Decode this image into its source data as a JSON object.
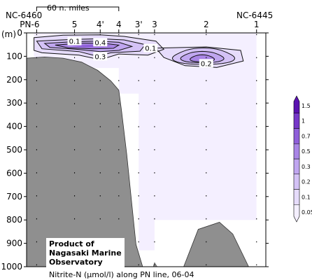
{
  "chart_data": {
    "type": "heatmap",
    "title": "Nitrite-N (μmol/l) along PN line, 06-04",
    "scale_label": "60 n. miles",
    "station_left_id": "NC-6460",
    "station_right_id": "NC-6445",
    "y_unit": "(m)",
    "yticks": [
      0,
      100,
      200,
      300,
      400,
      500,
      600,
      700,
      800,
      900,
      1000
    ],
    "ylim": [
      0,
      1000
    ],
    "stations": [
      {
        "label": "PN-6",
        "x": 0
      },
      {
        "label": "5",
        "x": 1.43
      },
      {
        "label": "4'",
        "x": 2.4
      },
      {
        "label": "4",
        "x": 3.1
      },
      {
        "label": "3'",
        "x": 3.85
      },
      {
        "label": "3",
        "x": 4.45
      },
      {
        "label": "2",
        "x": 6.4
      },
      {
        "label": "1",
        "x": 8.3
      }
    ],
    "xlim": [
      -0.38,
      8.65
    ],
    "levels": [
      0.05,
      0.1,
      0.2,
      0.3,
      0.5,
      0.7,
      1,
      1.5
    ],
    "level_labels": [
      "0.05",
      "0.1",
      "0.2",
      "0.3",
      "0.5",
      "0.7",
      "1",
      "1.5"
    ],
    "level_colors": [
      "#f4efff",
      "#e6dcfb",
      "#d4c2f6",
      "#c0a6f0",
      "#a985e6",
      "#8f5fda",
      "#7637c9",
      "#5a12b0"
    ],
    "contour_labels": [
      {
        "text": "0.1",
        "x": 1.43,
        "y": 35
      },
      {
        "text": "0.4",
        "x": 2.4,
        "y": 40
      },
      {
        "text": "0.3",
        "x": 2.4,
        "y": 100
      },
      {
        "text": "0.1",
        "x": 4.3,
        "y": 65
      },
      {
        "text": "0.2",
        "x": 6.4,
        "y": 130
      }
    ],
    "colorbar_max": 1.5,
    "credit_lines": [
      "Product of",
      "Nagasaki Marine",
      "Observatory"
    ]
  }
}
